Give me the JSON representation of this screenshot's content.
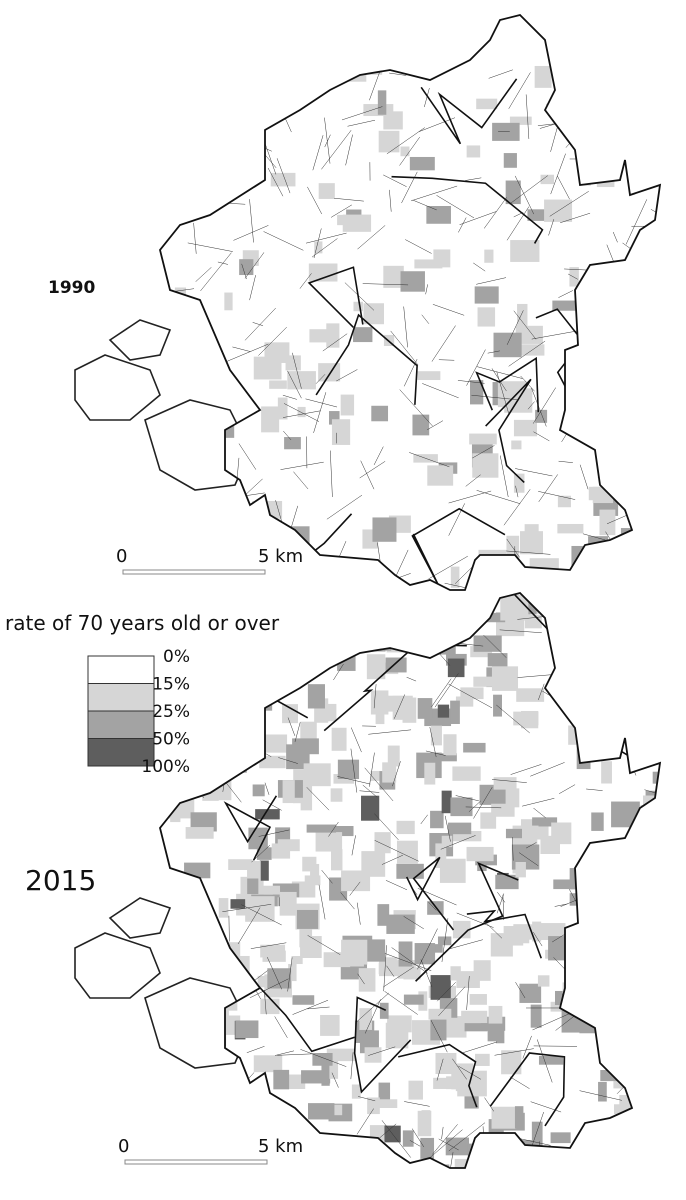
{
  "maps": [
    {
      "year": "1990",
      "scale": {
        "start": "0",
        "end": "5 km"
      }
    },
    {
      "year": "2015",
      "scale": {
        "start": "0",
        "end": "5 km"
      }
    }
  ],
  "legend": {
    "title": "rate of  70 years old or over",
    "labels": [
      "0%",
      "15%",
      "25%",
      "50%",
      "100%"
    ],
    "colors": [
      "#ffffff",
      "#d6d6d6",
      "#a3a3a3",
      "#5e5e5e"
    ]
  }
}
